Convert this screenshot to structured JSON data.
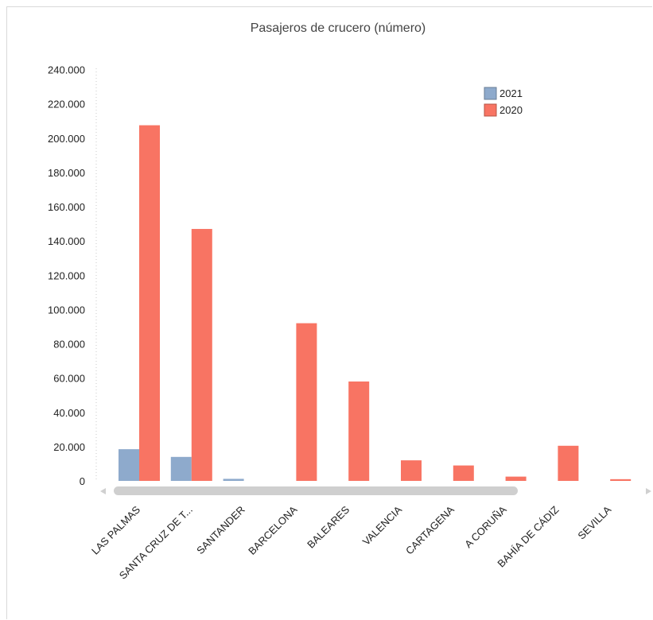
{
  "chart_data": {
    "type": "bar",
    "title": "Pasajeros de crucero (número)",
    "xlabel": "",
    "ylabel": "",
    "ylim": [
      0,
      240000
    ],
    "y_ticks": [
      "240.000",
      "220.000",
      "200.000",
      "180.000",
      "160.000",
      "140.000",
      "120.000",
      "100.000",
      "80.000",
      "60.000",
      "40.000",
      "20.000",
      "0"
    ],
    "y_tick_values": [
      240000,
      220000,
      200000,
      180000,
      160000,
      140000,
      120000,
      100000,
      80000,
      60000,
      40000,
      20000,
      0
    ],
    "categories": [
      "LAS PALMAS",
      "SANTA CRUZ DE T...",
      "SANTANDER",
      "BARCELONA",
      "BALEARES",
      "VALENCIA",
      "CARTAGENA",
      "A CORUÑA",
      "BAHÍA DE CÁDIZ",
      "SEVILLA"
    ],
    "series": [
      {
        "name": "2021",
        "color": "#8eaacc",
        "values": [
          18500,
          14000,
          1200,
          0,
          0,
          0,
          0,
          0,
          0,
          0
        ]
      },
      {
        "name": "2020",
        "color": "#f87463",
        "values": [
          207500,
          147000,
          0,
          92000,
          58000,
          12000,
          9000,
          2500,
          20500,
          1000
        ]
      }
    ],
    "legend_position": "top-right",
    "grid": false,
    "scrollbar": true
  }
}
